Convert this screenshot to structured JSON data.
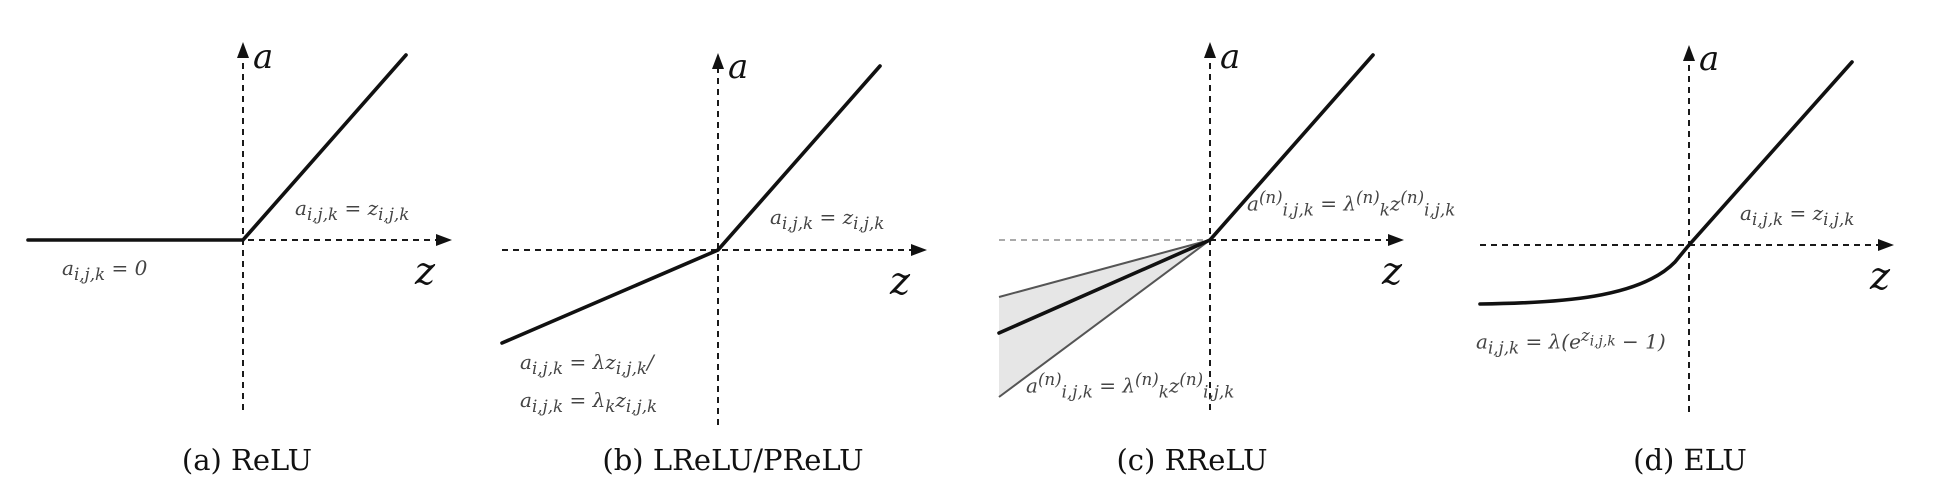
{
  "axis_labels": {
    "y": "a",
    "x": "z"
  },
  "panels": [
    {
      "caption": "(a) ReLU",
      "equations": {
        "positive": "a_{i,j,k} = z_{i,j,k}",
        "negative": "a_{i,j,k} = 0"
      }
    },
    {
      "caption": "(b) LReLU/PReLU",
      "equations": {
        "positive": "a_{i,j,k} = z_{i,j,k}",
        "negative_1": "a_{i,j,k} = λz_{i,j,k}/",
        "negative_2": "a_{i,j,k} = λ_k z_{i,j,k}"
      }
    },
    {
      "caption": "(c) RReLU",
      "equations": {
        "positive": "a^{(n)}_{i,j,k} = λ^{(n)}_k z^{(n)}_{i,j,k}",
        "negative": "a^{(n)}_{i,j,k} = λ^{(n)}_k z^{(n)}_{i,j,k}"
      }
    },
    {
      "caption": "(d) ELU",
      "equations": {
        "positive": "a_{i,j,k} = z_{i,j,k}",
        "negative": "a_{i,j,k} = λ(e^{z_{i,j,k}} − 1)"
      }
    }
  ]
}
